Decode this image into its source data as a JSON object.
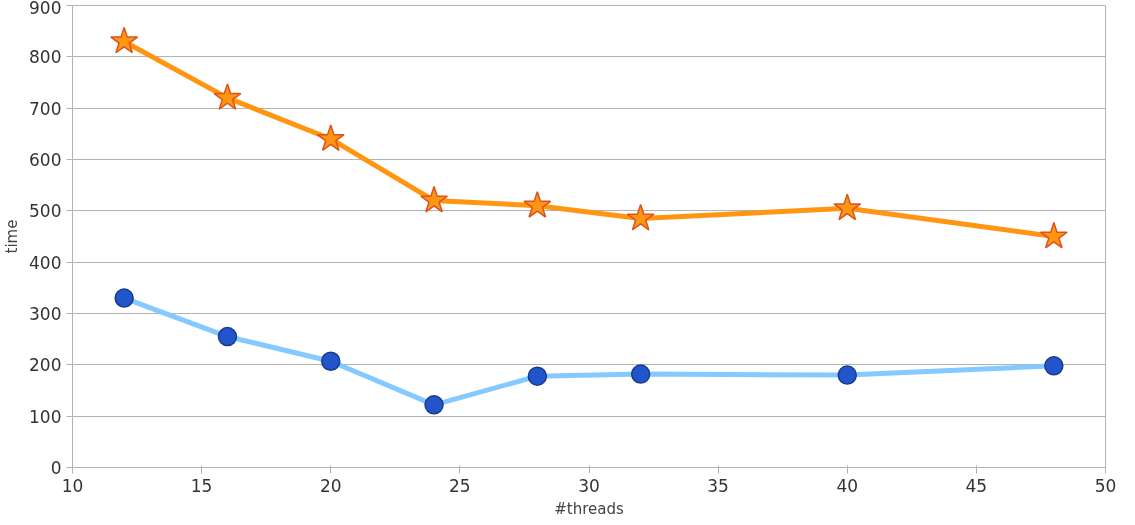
{
  "chart_data": {
    "type": "line",
    "xlabel": "#threads",
    "ylabel": "time",
    "x": [
      12,
      16,
      20,
      24,
      28,
      32,
      40,
      48
    ],
    "series": [
      {
        "color": "#ff9511",
        "marker": "star",
        "values": [
          830,
          720,
          640,
          520,
          510,
          485,
          505,
          450
        ]
      },
      {
        "color": "#84c9ff",
        "marker": "circle",
        "values": [
          330,
          255,
          207,
          122,
          178,
          182,
          180,
          198
        ]
      }
    ],
    "xlim": [
      10,
      50
    ],
    "xticks": [
      10,
      15,
      20,
      25,
      30,
      35,
      40,
      45,
      50
    ],
    "ylim": [
      0,
      900
    ],
    "yticks": [
      0,
      100,
      200,
      300,
      400,
      500,
      600,
      700,
      800,
      900
    ],
    "grid": "y",
    "line_style": "solid"
  }
}
